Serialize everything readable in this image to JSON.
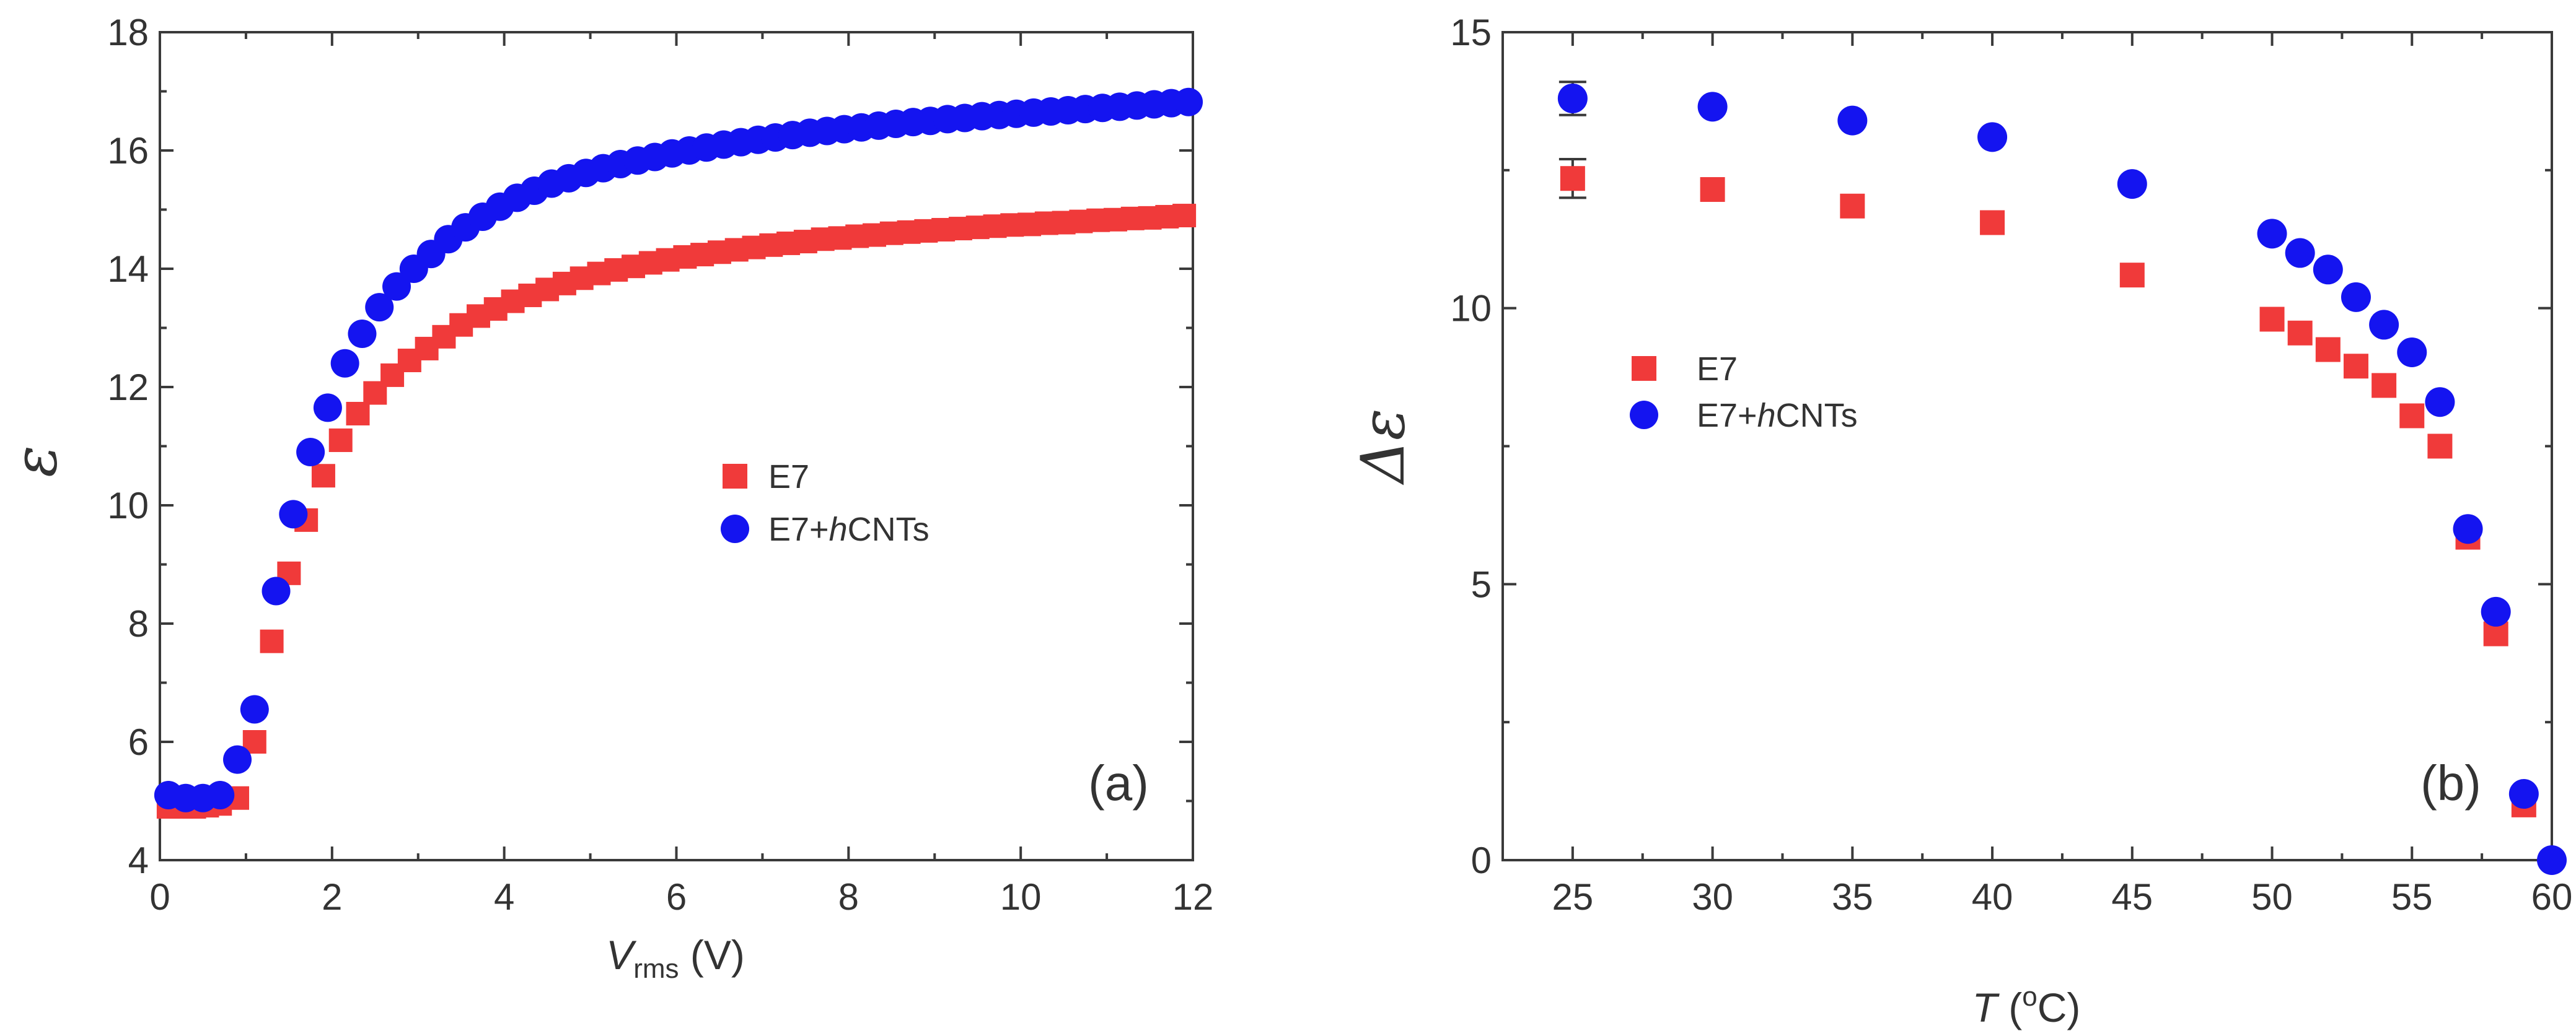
{
  "colors": {
    "e7": "#f03a3a",
    "e7_hcnts": "#1414f0",
    "axis": "#3a3a3a"
  },
  "chart_data": [
    {
      "type": "scatter",
      "panel": "(a)",
      "xlabel_main": "V",
      "xlabel_sub": "rms",
      "xlabel_unit": " (V)",
      "ylabel": "ε",
      "xlim": [
        0,
        12
      ],
      "ylim": [
        4,
        18
      ],
      "xticks": [
        0,
        2,
        4,
        6,
        8,
        10,
        12
      ],
      "yticks": [
        4,
        6,
        8,
        10,
        12,
        14,
        16,
        18
      ],
      "legend_placement": "center-right",
      "series": [
        {
          "name": "E7",
          "marker": "square",
          "color": "#f03a3a",
          "x": [
            0.1,
            0.25,
            0.4,
            0.55,
            0.7,
            0.9,
            1.1,
            1.3,
            1.5,
            1.7,
            1.9,
            2.1,
            2.3,
            2.5,
            2.7,
            2.9,
            3.1,
            3.3,
            3.5,
            3.7,
            3.9,
            4.1,
            4.3,
            4.5,
            4.7,
            4.9,
            5.1,
            5.3,
            5.5,
            5.7,
            5.9,
            6.1,
            6.3,
            6.5,
            6.7,
            6.9,
            7.1,
            7.3,
            7.5,
            7.7,
            7.9,
            8.1,
            8.3,
            8.5,
            8.7,
            8.9,
            9.1,
            9.3,
            9.5,
            9.7,
            9.9,
            10.1,
            10.3,
            10.5,
            10.7,
            10.9,
            11.1,
            11.3,
            11.5,
            11.7,
            11.9
          ],
          "y": [
            4.9,
            4.9,
            4.9,
            4.92,
            4.95,
            5.05,
            6.0,
            7.7,
            8.85,
            9.75,
            10.5,
            11.1,
            11.55,
            11.9,
            12.2,
            12.45,
            12.65,
            12.85,
            13.05,
            13.2,
            13.32,
            13.45,
            13.55,
            13.65,
            13.75,
            13.84,
            13.92,
            13.98,
            14.04,
            14.1,
            14.15,
            14.2,
            14.24,
            14.28,
            14.32,
            14.36,
            14.4,
            14.43,
            14.46,
            14.5,
            14.52,
            14.55,
            14.57,
            14.6,
            14.62,
            14.64,
            14.66,
            14.68,
            14.7,
            14.72,
            14.74,
            14.75,
            14.77,
            14.78,
            14.8,
            14.82,
            14.83,
            14.85,
            14.86,
            14.88,
            14.9
          ]
        },
        {
          "name": "E7+hCNTs",
          "marker": "circle",
          "color": "#1414f0",
          "x": [
            0.1,
            0.3,
            0.5,
            0.7,
            0.9,
            1.1,
            1.35,
            1.55,
            1.75,
            1.95,
            2.15,
            2.35,
            2.55,
            2.75,
            2.95,
            3.15,
            3.35,
            3.55,
            3.75,
            3.95,
            4.15,
            4.35,
            4.55,
            4.75,
            4.95,
            5.15,
            5.35,
            5.55,
            5.75,
            5.95,
            6.15,
            6.35,
            6.55,
            6.75,
            6.95,
            7.15,
            7.35,
            7.55,
            7.75,
            7.95,
            8.15,
            8.35,
            8.55,
            8.75,
            8.95,
            9.15,
            9.35,
            9.55,
            9.75,
            9.95,
            10.15,
            10.35,
            10.55,
            10.75,
            10.95,
            11.15,
            11.35,
            11.55,
            11.75,
            11.95
          ],
          "y": [
            5.1,
            5.05,
            5.05,
            5.1,
            5.7,
            6.55,
            8.55,
            9.85,
            10.9,
            11.65,
            12.4,
            12.9,
            13.35,
            13.7,
            14.0,
            14.25,
            14.5,
            14.7,
            14.88,
            15.05,
            15.2,
            15.32,
            15.44,
            15.53,
            15.62,
            15.7,
            15.77,
            15.83,
            15.89,
            15.95,
            16.0,
            16.05,
            16.1,
            16.14,
            16.18,
            16.22,
            16.26,
            16.3,
            16.33,
            16.36,
            16.39,
            16.42,
            16.45,
            16.48,
            16.5,
            16.53,
            16.55,
            16.58,
            16.6,
            16.62,
            16.64,
            16.66,
            16.68,
            16.7,
            16.72,
            16.74,
            16.76,
            16.78,
            16.8,
            16.82
          ]
        }
      ]
    },
    {
      "type": "scatter",
      "panel": "(b)",
      "xlabel_main": "T",
      "xlabel_unit_pre": " (",
      "xlabel_sup": "o",
      "xlabel_unit_post": "C)",
      "ylabel": "Δε",
      "xlim": [
        22.5,
        60
      ],
      "ylim": [
        0,
        15
      ],
      "xticks": [
        25,
        30,
        35,
        40,
        45,
        50,
        55,
        60
      ],
      "yticks": [
        0,
        5,
        10,
        15
      ],
      "legend_placement": "center-left",
      "series": [
        {
          "name": "E7",
          "marker": "square",
          "color": "#f03a3a",
          "x": [
            25,
            30,
            35,
            40,
            45,
            50,
            51,
            52,
            53,
            54,
            55,
            56,
            57,
            58,
            59
          ],
          "y": [
            12.35,
            12.15,
            11.85,
            11.55,
            10.6,
            9.8,
            9.55,
            9.25,
            8.95,
            8.6,
            8.05,
            7.5,
            5.85,
            4.1,
            1.0
          ],
          "yerr": [
            0.35,
            0,
            0,
            0,
            0,
            0,
            0,
            0,
            0,
            0,
            0,
            0,
            0,
            0,
            0
          ]
        },
        {
          "name": "E7+hCNTs",
          "marker": "circle",
          "color": "#1414f0",
          "x": [
            25,
            30,
            35,
            40,
            45,
            50,
            51,
            52,
            53,
            54,
            55,
            56,
            57,
            58,
            59,
            60
          ],
          "y": [
            13.8,
            13.65,
            13.4,
            13.1,
            12.25,
            11.35,
            11.0,
            10.7,
            10.2,
            9.7,
            9.2,
            8.3,
            6.0,
            4.5,
            1.2,
            0.0
          ],
          "yerr": [
            0.3,
            0,
            0,
            0,
            0,
            0,
            0,
            0,
            0,
            0,
            0,
            0,
            0,
            0,
            0,
            0
          ]
        }
      ]
    }
  ],
  "legend": {
    "e7": "E7",
    "e7h_pre": "E7+",
    "e7h_ital": "h",
    "e7h_post": "CNTs"
  }
}
